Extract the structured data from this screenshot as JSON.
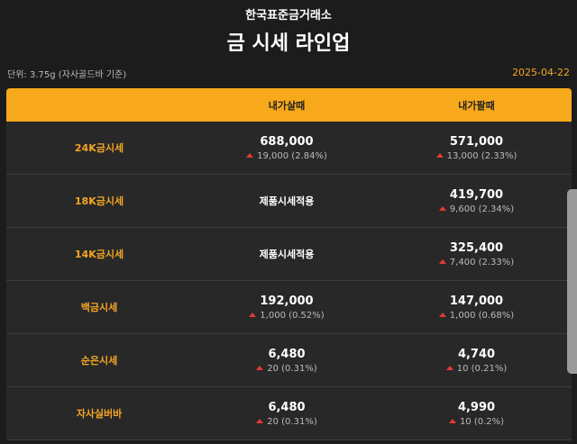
{
  "header": {
    "brand": "한국표준금거래소",
    "title": "금 시세 라인업",
    "unit": "단위: 3.75g (자사골드바 기준)",
    "date": "2025-04-22"
  },
  "table": {
    "columns": {
      "buy": "내가살때",
      "sell": "내가팔때"
    },
    "rows": [
      {
        "label": "24K금시세",
        "buy": {
          "price": "688,000",
          "change": "19,000 (2.84%)"
        },
        "sell": {
          "price": "571,000",
          "change": "13,000 (2.33%)"
        }
      },
      {
        "label": "18K금시세",
        "buy": {
          "note": "제품시세적용"
        },
        "sell": {
          "price": "419,700",
          "change": "9,600 (2.34%)"
        }
      },
      {
        "label": "14K금시세",
        "buy": {
          "note": "제품시세적용"
        },
        "sell": {
          "price": "325,400",
          "change": "7,400 (2.33%)"
        }
      },
      {
        "label": "백금시세",
        "buy": {
          "price": "192,000",
          "change": "1,000 (0.52%)"
        },
        "sell": {
          "price": "147,000",
          "change": "1,000 (0.68%)"
        }
      },
      {
        "label": "순은시세",
        "buy": {
          "price": "6,480",
          "change": "20 (0.31%)"
        },
        "sell": {
          "price": "4,740",
          "change": "10 (0.21%)"
        }
      },
      {
        "label": "자사실버바",
        "buy": {
          "price": "6,480",
          "change": "20 (0.31%)"
        },
        "sell": {
          "price": "4,990",
          "change": "10 (0.2%)"
        }
      }
    ]
  }
}
